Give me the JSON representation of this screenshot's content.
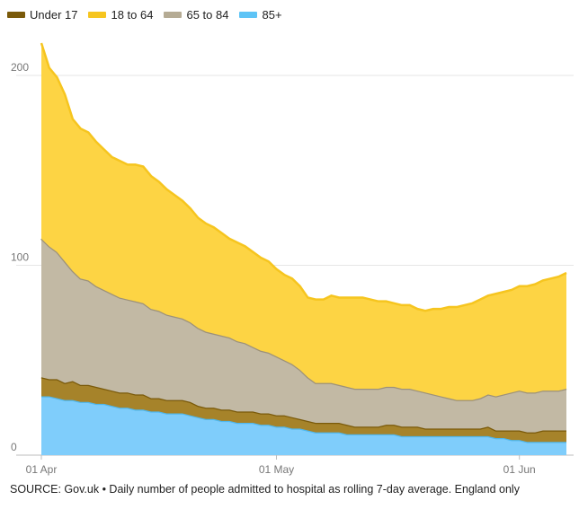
{
  "legend": [
    {
      "label": "Under 17",
      "color": "#7a5a0a"
    },
    {
      "label": "18 to 64",
      "color": "#f6c51f"
    },
    {
      "label": "65 to 84",
      "color": "#b5ab94"
    },
    {
      "label": "85+",
      "color": "#5ec4f6"
    }
  ],
  "source": "SOURCE: Gov.uk • Daily number of people admitted to hospital as rolling 7-day average. England only",
  "chart_data": {
    "type": "area",
    "stacked": true,
    "title": "",
    "xlabel": "",
    "ylabel": "",
    "x_start": "01 Apr",
    "days": 68,
    "x_ticks": [
      {
        "day": 0,
        "label": "01 Apr"
      },
      {
        "day": 30,
        "label": "01 May"
      },
      {
        "day": 61,
        "label": "01 Jun"
      }
    ],
    "y_ticks": [
      0,
      100,
      200
    ],
    "ylim": [
      0,
      216
    ],
    "grid": true,
    "stack_order": [
      "85+",
      "Under 17",
      "65 to 84",
      "18 to 64"
    ],
    "series": [
      {
        "name": "85+",
        "color": "#7fcdfb",
        "values": [
          31,
          31,
          30,
          29,
          29,
          28,
          28,
          27,
          27,
          26,
          25,
          25,
          24,
          24,
          23,
          23,
          22,
          22,
          22,
          21,
          20,
          19,
          19,
          18,
          18,
          17,
          17,
          17,
          16,
          16,
          15,
          15,
          14,
          14,
          13,
          12,
          12,
          12,
          12,
          11,
          11,
          11,
          11,
          11,
          11,
          11,
          10,
          10,
          10,
          10,
          10,
          10,
          10,
          10,
          10,
          10,
          10,
          10,
          9,
          9,
          8,
          8,
          7,
          7,
          7,
          7,
          7,
          7
        ]
      },
      {
        "name": "Under 17",
        "color": "#a6832a",
        "values": [
          10,
          9,
          10,
          9,
          10,
          9,
          9,
          9,
          8,
          8,
          8,
          8,
          8,
          8,
          7,
          7,
          7,
          7,
          7,
          7,
          6,
          6,
          6,
          6,
          6,
          6,
          6,
          6,
          6,
          6,
          6,
          6,
          6,
          5,
          5,
          5,
          5,
          5,
          5,
          5,
          4,
          4,
          4,
          4,
          5,
          5,
          5,
          5,
          5,
          4,
          4,
          4,
          4,
          4,
          4,
          4,
          4,
          5,
          4,
          4,
          5,
          5,
          5,
          5,
          6,
          6,
          6,
          6
        ]
      },
      {
        "name": "65 to 84",
        "color": "#c2b9a4",
        "values": [
          73,
          70,
          67,
          64,
          58,
          56,
          55,
          53,
          52,
          51,
          50,
          49,
          49,
          48,
          47,
          46,
          45,
          44,
          43,
          42,
          41,
          40,
          39,
          39,
          38,
          37,
          36,
          34,
          33,
          32,
          31,
          29,
          28,
          26,
          23,
          21,
          21,
          21,
          20,
          20,
          20,
          20,
          20,
          20,
          20,
          20,
          20,
          20,
          19,
          19,
          18,
          17,
          16,
          15,
          15,
          15,
          16,
          17,
          18,
          19,
          20,
          21,
          21,
          21,
          21,
          21,
          21,
          22
        ]
      },
      {
        "name": "18 to 64",
        "color": "#fdd444",
        "values": [
          103,
          94,
          92,
          88,
          80,
          79,
          78,
          76,
          74,
          72,
          72,
          71,
          72,
          72,
          70,
          68,
          66,
          64,
          62,
          60,
          58,
          57,
          56,
          54,
          52,
          52,
          51,
          50,
          49,
          48,
          46,
          45,
          45,
          44,
          42,
          44,
          44,
          46,
          46,
          47,
          48,
          48,
          47,
          46,
          45,
          44,
          44,
          44,
          43,
          43,
          45,
          46,
          48,
          49,
          50,
          51,
          52,
          52,
          54,
          54,
          54,
          55,
          56,
          57,
          58,
          59,
          60,
          61
        ]
      }
    ]
  }
}
